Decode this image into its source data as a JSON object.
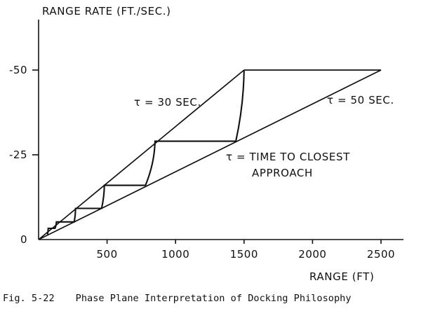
{
  "chart_data": {
    "type": "line",
    "title": "",
    "ylabel": "RANGE RATE (FT./SEC.)",
    "xlabel": "RANGE (FT)",
    "x_ticks": [
      500,
      1000,
      1500,
      2000,
      2500
    ],
    "x_tick_labels": [
      "500",
      "1000",
      "1500",
      "2000",
      "2500"
    ],
    "y_ticks": [
      0,
      -25,
      -50
    ],
    "y_tick_labels": [
      "0",
      "-25",
      "-50"
    ],
    "xlim": [
      0,
      2600
    ],
    "ylim": [
      0,
      -62
    ],
    "grid": false,
    "series": [
      {
        "label": "τ = 30 SEC.",
        "x": [
          0,
          1500
        ],
        "y": [
          0,
          -50
        ]
      },
      {
        "label": "τ = 50 SEC.",
        "x": [
          0,
          2500
        ],
        "y": [
          0,
          -50
        ]
      },
      {
        "x": [
          2500,
          1500
        ],
        "y": [
          -50,
          -50
        ]
      },
      {
        "x": [
          1500,
          1440,
          850,
          780,
          480,
          460,
          270,
          260,
          130,
          120,
          70,
          65
        ],
        "y": [
          -50,
          -29,
          -29,
          -16,
          -16,
          -9.2,
          -9.2,
          -5.2,
          -5.2,
          -3.3,
          -3.3,
          -1.5
        ]
      }
    ],
    "annotations": [
      "τ = 30 SEC.",
      "τ = 50 SEC.",
      "τ = TIME TO CLOSEST",
      "APPROACH"
    ]
  },
  "labels": {
    "tau30": "τ = 30 SEC.",
    "tau50": "τ = 50 SEC.",
    "tau_def_1": "τ = TIME TO CLOSEST",
    "tau_def_2": "APPROACH"
  },
  "caption": {
    "fig_number": "Fig. 5-22",
    "title": "Phase Plane Interpretation of Docking Philosophy"
  }
}
